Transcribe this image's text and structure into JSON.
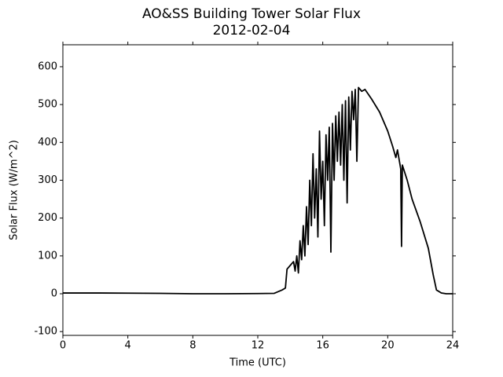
{
  "chart_data": {
    "type": "line",
    "title": "AO&SS Building Tower Solar Flux",
    "subtitle": "2012-02-04",
    "x_label": "Time (UTC)",
    "y_label": "Solar Flux (W/m^2)",
    "color": "#000000",
    "x": [
      0,
      2,
      4,
      6,
      8,
      10,
      12,
      13,
      13.5,
      13.7,
      13.8,
      14,
      14.2,
      14.3,
      14.4,
      14.5,
      14.6,
      14.7,
      14.8,
      14.9,
      15.0,
      15.1,
      15.2,
      15.3,
      15.4,
      15.5,
      15.6,
      15.7,
      15.8,
      15.9,
      16.0,
      16.1,
      16.2,
      16.3,
      16.4,
      16.5,
      16.6,
      16.7,
      16.8,
      16.9,
      17.0,
      17.1,
      17.2,
      17.3,
      17.4,
      17.5,
      17.6,
      17.7,
      17.8,
      17.9,
      18.0,
      18.1,
      18.2,
      18.4,
      18.6,
      19.0,
      19.5,
      20.0,
      20.3,
      20.5,
      20.6,
      20.8,
      20.85,
      20.9,
      21.2,
      21.5,
      22.0,
      22.5,
      22.8,
      23.0,
      23.3,
      23.6,
      24
    ],
    "values": [
      2,
      2,
      1.5,
      1,
      0,
      0,
      0.5,
      1,
      10,
      15,
      65,
      75,
      85,
      60,
      100,
      55,
      140,
      90,
      180,
      100,
      230,
      130,
      300,
      180,
      370,
      200,
      330,
      150,
      430,
      250,
      350,
      180,
      420,
      300,
      440,
      110,
      450,
      300,
      470,
      350,
      480,
      340,
      500,
      300,
      510,
      240,
      520,
      380,
      535,
      460,
      540,
      350,
      545,
      535,
      540,
      515,
      480,
      430,
      390,
      360,
      380,
      330,
      125,
      340,
      300,
      250,
      190,
      120,
      50,
      10,
      2,
      0,
      0
    ],
    "xlim": [
      0,
      24
    ],
    "xticks": [
      0,
      4,
      8,
      12,
      16,
      20,
      24
    ],
    "ylim": [
      -110,
      658
    ],
    "yticks": [
      -100,
      0,
      100,
      200,
      300,
      400,
      500,
      600
    ],
    "grid": false
  }
}
